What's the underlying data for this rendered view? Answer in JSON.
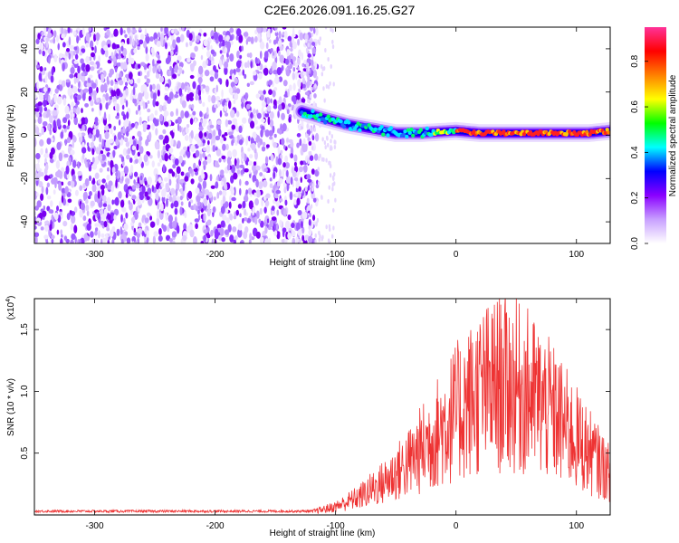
{
  "title": "C2E6.2026.091.16.25.G27",
  "chart_data": [
    {
      "type": "heatmap",
      "xlabel": "Height of straight line (km)",
      "ylabel": "Frequency (Hz)",
      "xlim": [
        -350,
        128
      ],
      "ylim": [
        -50,
        50
      ],
      "xticks": [
        -300,
        -200,
        -100,
        0,
        100
      ],
      "yticks": [
        -40,
        -20,
        0,
        20,
        40
      ],
      "track": {
        "description_points": [
          [
            -128,
            11
          ],
          [
            -110,
            8
          ],
          [
            -90,
            5
          ],
          [
            -70,
            3
          ],
          [
            -50,
            1
          ],
          [
            -30,
            1
          ],
          [
            0,
            2
          ],
          [
            20,
            1
          ],
          [
            50,
            1
          ],
          [
            80,
            1
          ],
          [
            110,
            1
          ],
          [
            128,
            2
          ]
        ]
      },
      "noise_region_x": [
        -350,
        -125
      ],
      "colorbar": {
        "label": "Normalized spectral amplitude",
        "range": [
          0.0,
          0.95
        ],
        "ticks": [
          0.0,
          0.2,
          0.4,
          0.6,
          0.8
        ],
        "tick_labels": [
          "0.0",
          "0.2",
          "0.4",
          "0.6",
          "0.8"
        ],
        "colors": [
          "#ffffff",
          "#c8a0ff",
          "#8a00ff",
          "#0000ff",
          "#00ffff",
          "#00ff00",
          "#ffff00",
          "#ff8000",
          "#ff0000",
          "#ff3399"
        ]
      }
    },
    {
      "type": "line",
      "xlabel": "Height of straight line (km)",
      "ylabel": "SNR (10 * v/v)",
      "yscale_label": "(x10",
      "yscale_exp": "4",
      "xlim": [
        -350,
        128
      ],
      "ylim": [
        0,
        1.75
      ],
      "xticks": [
        -300,
        -200,
        -100,
        0,
        100
      ],
      "yticks": [
        0.5,
        1.0,
        1.5
      ],
      "ytick_labels": [
        "0.5",
        "1.0",
        "1.5"
      ],
      "color": "#ee3333",
      "envelope": {
        "x": [
          -350,
          -120,
          -100,
          -80,
          -60,
          -40,
          -20,
          0,
          20,
          40,
          60,
          80,
          100,
          128
        ],
        "y": [
          0.02,
          0.03,
          0.08,
          0.18,
          0.32,
          0.5,
          0.75,
          1.0,
          1.2,
          1.3,
          1.2,
          1.0,
          0.75,
          0.4
        ]
      }
    }
  ]
}
